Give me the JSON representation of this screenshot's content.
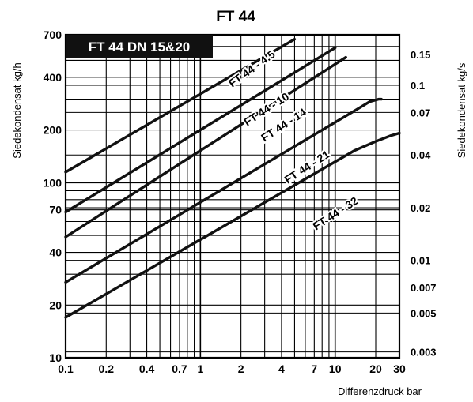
{
  "chart_data": {
    "type": "line",
    "title": "FT 44",
    "subtitle": "FT 44 DN 15&20",
    "xlabel": "Differenzdruck bar",
    "ylabel": "Siedekondensat kg/h",
    "ylabel_right": "Siedekondensat kg/s",
    "x_scale": "log",
    "y_scale": "log",
    "xlim": [
      0.1,
      30
    ],
    "ylim": [
      10,
      700
    ],
    "grid": true,
    "x_ticks": [
      {
        "v": 0.1,
        "label": "0.1"
      },
      {
        "v": 0.2,
        "label": "0.2"
      },
      {
        "v": 0.4,
        "label": "0.4"
      },
      {
        "v": 0.7,
        "label": "0.7"
      },
      {
        "v": 1,
        "label": "1"
      },
      {
        "v": 2,
        "label": "2"
      },
      {
        "v": 4,
        "label": "4"
      },
      {
        "v": 7,
        "label": "7"
      },
      {
        "v": 10,
        "label": "10"
      },
      {
        "v": 20,
        "label": "20"
      },
      {
        "v": 30,
        "label": "30"
      }
    ],
    "y_ticks": [
      {
        "v": 10,
        "label": "10"
      },
      {
        "v": 20,
        "label": "20"
      },
      {
        "v": 40,
        "label": "40"
      },
      {
        "v": 70,
        "label": "70"
      },
      {
        "v": 100,
        "label": "100"
      },
      {
        "v": 200,
        "label": "200"
      },
      {
        "v": 400,
        "label": "400"
      },
      {
        "v": 700,
        "label": "700"
      }
    ],
    "y2_ticks": [
      {
        "v": 0.003,
        "label": "0.003"
      },
      {
        "v": 0.005,
        "label": "0.005"
      },
      {
        "v": 0.007,
        "label": "0.007"
      },
      {
        "v": 0.01,
        "label": "0.01"
      },
      {
        "v": 0.02,
        "label": "0.02"
      },
      {
        "v": 0.04,
        "label": "0.04"
      },
      {
        "v": 0.07,
        "label": "0.07"
      },
      {
        "v": 0.1,
        "label": "0.1"
      },
      {
        "v": 0.15,
        "label": "0.15"
      }
    ],
    "series": [
      {
        "name": "FT 44 - 4.5",
        "points": [
          [
            0.1,
            115
          ],
          [
            5,
            660
          ]
        ]
      },
      {
        "name": "FT 44 - 10",
        "points": [
          [
            0.1,
            68
          ],
          [
            10,
            590
          ]
        ]
      },
      {
        "name": "FT 44 - 14",
        "points": [
          [
            0.1,
            49
          ],
          [
            12,
            520
          ]
        ]
      },
      {
        "name": "FT 44 - 21",
        "points": [
          [
            0.1,
            27
          ],
          [
            14,
            258
          ],
          [
            18,
            290
          ],
          [
            21,
            300
          ],
          [
            22,
            300
          ]
        ]
      },
      {
        "name": "FT 44 - 32",
        "points": [
          [
            0.1,
            17
          ],
          [
            14,
            153
          ],
          [
            20,
            172
          ],
          [
            26,
            186
          ],
          [
            30,
            192
          ]
        ]
      }
    ]
  }
}
